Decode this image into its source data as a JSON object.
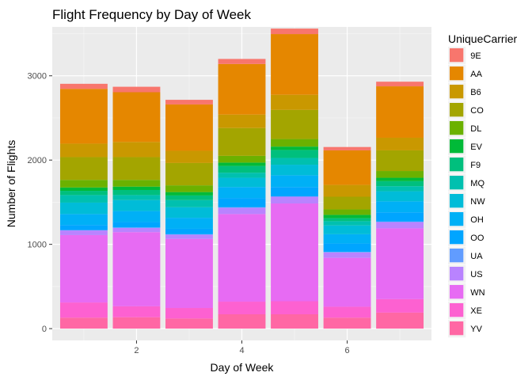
{
  "chart_data": {
    "type": "bar",
    "stacked": true,
    "title": "Flight Frequency by Day of Week",
    "xlabel": "Day of Week",
    "ylabel": "Number of Flights",
    "x": [
      1,
      2,
      3,
      4,
      5,
      6,
      7
    ],
    "xlim": [
      0.4,
      7.6
    ],
    "ylim": [
      -140,
      3580
    ],
    "x_ticks": [
      2,
      4,
      6
    ],
    "y_ticks": [
      0,
      1000,
      2000,
      3000
    ],
    "grid": true,
    "legend": {
      "title": "UniqueCarrier",
      "position": "right"
    },
    "series": [
      {
        "name": "9E",
        "color": "#F8766D",
        "values": [
          60,
          65,
          55,
          60,
          65,
          40,
          55
        ]
      },
      {
        "name": "AA",
        "color": "#E58700",
        "values": [
          650,
          590,
          550,
          600,
          720,
          410,
          610
        ]
      },
      {
        "name": "B6",
        "color": "#C99800",
        "values": [
          160,
          180,
          145,
          160,
          180,
          140,
          150
        ]
      },
      {
        "name": "CO",
        "color": "#A3A500",
        "values": [
          270,
          270,
          265,
          330,
          345,
          150,
          245
        ]
      },
      {
        "name": "DL",
        "color": "#6BB100",
        "values": [
          90,
          80,
          80,
          80,
          90,
          65,
          80
        ]
      },
      {
        "name": "EV",
        "color": "#00BA38",
        "values": [
          40,
          40,
          40,
          40,
          40,
          40,
          40
        ]
      },
      {
        "name": "F9",
        "color": "#00BF7D",
        "values": [
          50,
          60,
          55,
          80,
          95,
          35,
          60
        ]
      },
      {
        "name": "MQ",
        "color": "#00C0AF",
        "values": [
          90,
          60,
          85,
          60,
          80,
          50,
          60
        ]
      },
      {
        "name": "NW",
        "color": "#00BCD8",
        "values": [
          135,
          130,
          125,
          110,
          125,
          105,
          120
        ]
      },
      {
        "name": "OH",
        "color": "#00B0F6",
        "values": [
          130,
          130,
          130,
          130,
          140,
          110,
          130
        ]
      },
      {
        "name": "OO",
        "color": "#00A5FF",
        "values": [
          60,
          65,
          65,
          110,
          110,
          100,
          110
        ]
      },
      {
        "name": "UA",
        "color": "#619CFF",
        "values": [
          5,
          5,
          5,
          5,
          5,
          5,
          5
        ]
      },
      {
        "name": "US",
        "color": "#B983FF",
        "values": [
          55,
          50,
          50,
          75,
          80,
          65,
          75
        ]
      },
      {
        "name": "WN",
        "color": "#E76BF3",
        "values": [
          800,
          880,
          820,
          1040,
          1160,
          580,
          840
        ]
      },
      {
        "name": "XE",
        "color": "#FD61D1",
        "values": [
          180,
          130,
          125,
          150,
          155,
          130,
          160
        ]
      },
      {
        "name": "YV",
        "color": "#FF67A4",
        "values": [
          130,
          135,
          120,
          170,
          170,
          130,
          190
        ]
      }
    ]
  }
}
